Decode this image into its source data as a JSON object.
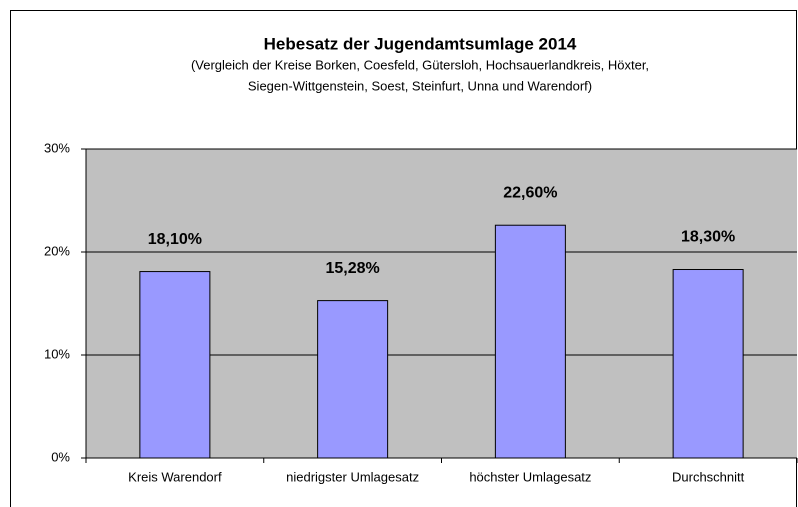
{
  "chart_data": {
    "type": "bar",
    "title": "Hebesatz der Jugendamtsumlage 2014",
    "subtitle": [
      "(Vergleich der Kreise Borken, Coesfeld, Gütersloh, Hochsauerlandkreis, Höxter,",
      "Siegen-Wittgenstein, Soest, Steinfurt, Unna und Warendorf)"
    ],
    "categories": [
      "Kreis Warendorf",
      "niedrigster Umlagesatz",
      "höchster Umlagesatz",
      "Durchschnitt"
    ],
    "values": [
      18.1,
      15.28,
      22.6,
      18.3
    ],
    "value_labels": [
      "18,10%",
      "15,28%",
      "22,60%",
      "18,30%"
    ],
    "color": "#9999ff",
    "ylim": [
      0,
      30
    ],
    "yticks": [
      {
        "value": 0,
        "label": "0%"
      },
      {
        "value": 10,
        "label": "10%"
      },
      {
        "value": 20,
        "label": "20%"
      },
      {
        "value": 30,
        "label": "30%"
      }
    ],
    "grid": true
  }
}
